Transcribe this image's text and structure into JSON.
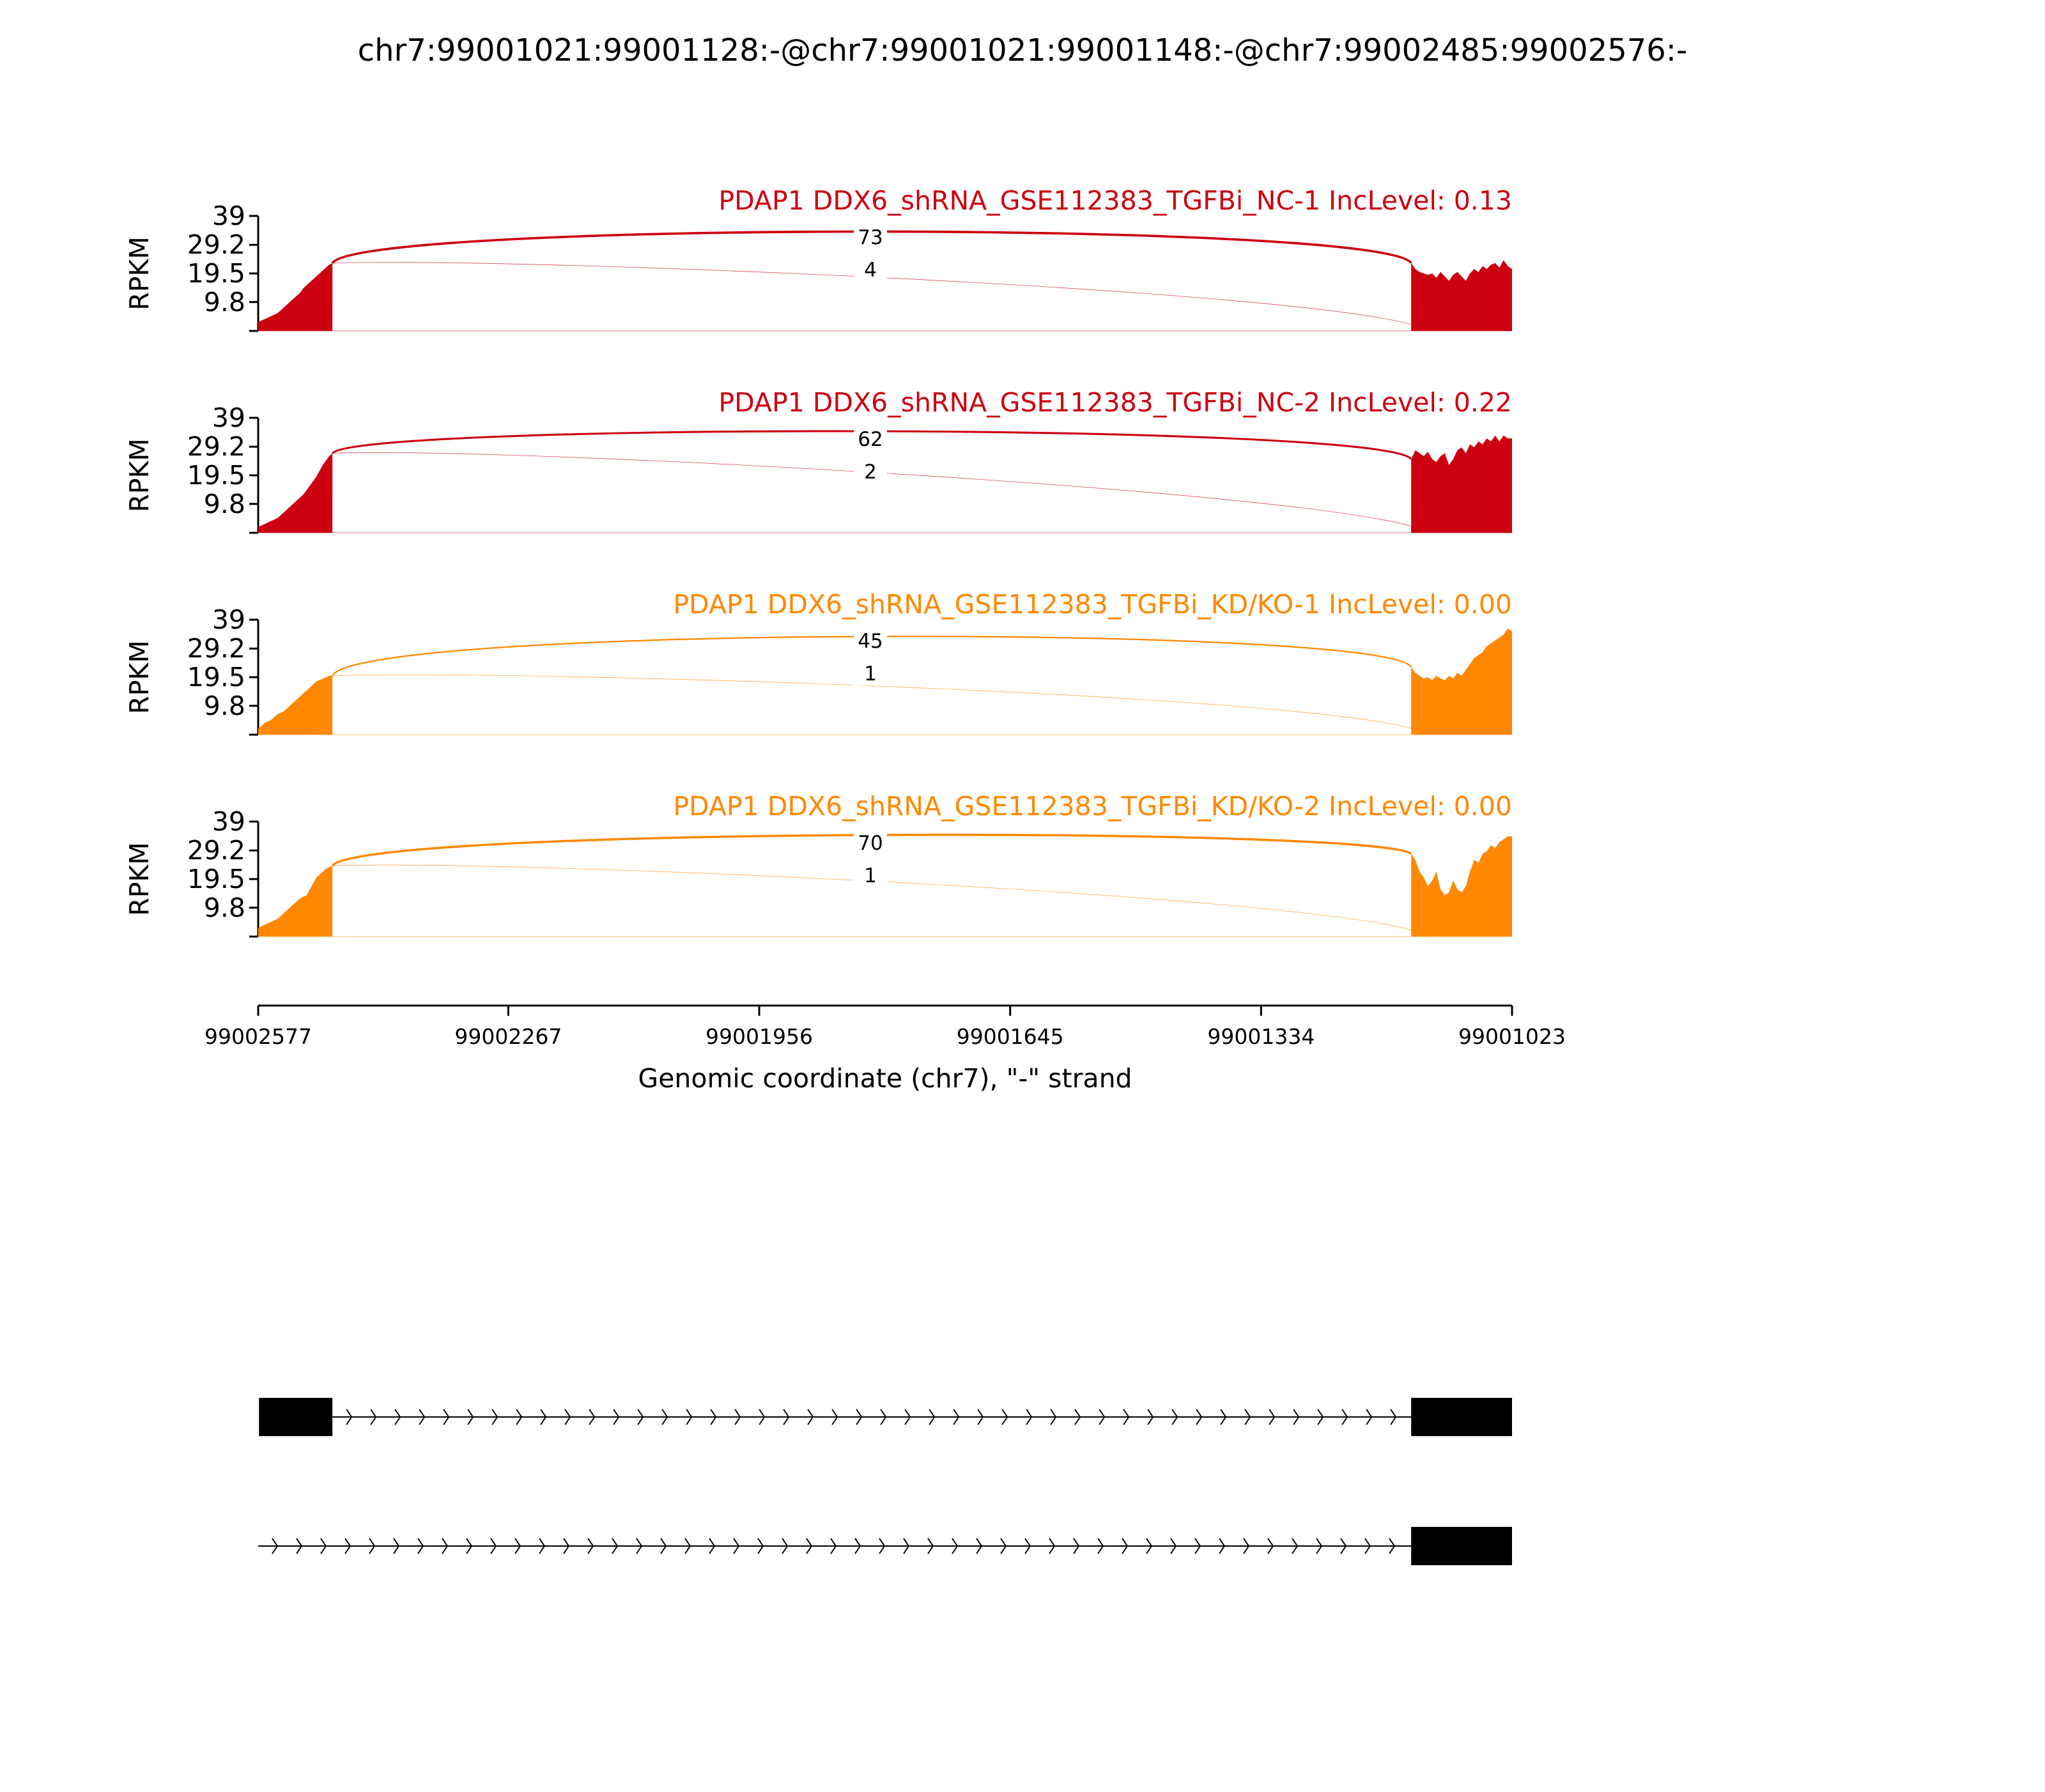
{
  "title": "chr7:99001021:99001128:-@chr7:99001021:99001148:-@chr7:99002485:99002576:-",
  "chart_data": {
    "type": "area",
    "description_free": true,
    "ylabel": "RPKM",
    "yticks": [
      "9.8",
      "19.5",
      "29.2",
      "39"
    ],
    "ytick_values": [
      9.8,
      19.5,
      29.2,
      39
    ],
    "ylim": [
      0,
      39
    ],
    "xlim": [
      99002577,
      99001023
    ],
    "x_reversed": true,
    "xticks": [
      "99002577",
      "99002267",
      "99001956",
      "99001645",
      "99001334",
      "99001023"
    ],
    "xtick_values": [
      99002577,
      99002267,
      99001956,
      99001645,
      99001334,
      99001023
    ],
    "xlabel": "Genomic coordinate (chr7), \"-\" strand",
    "exons": [
      {
        "start": 99002576,
        "end": 99002485
      },
      {
        "start": 99001148,
        "end": 99001023
      }
    ],
    "panels": [
      {
        "label": "PDAP1 DDX6_shRNA_GSE112383_TGFBi_NC-1 IncLevel: 0.13",
        "color": "#CC0011",
        "junctions": [
          {
            "from": 99002485,
            "to": 99001148,
            "count": "73",
            "weight": 73,
            "side": "upper"
          },
          {
            "from": 99002485,
            "to": 99001128,
            "count": "4",
            "weight": 4,
            "side": "lower"
          }
        ],
        "left_exon_profile": [
          3,
          3.5,
          4,
          4.5,
          5,
          5.5,
          6,
          7,
          8,
          9,
          10,
          11,
          12,
          13,
          14.5,
          15.5,
          16.5,
          17.5,
          18.5,
          19.5,
          20.5,
          21.5,
          22.5,
          23
        ],
        "right_exon_profile": [
          23,
          21,
          20,
          19.5,
          19,
          19.5,
          18,
          20,
          18.5,
          17,
          19,
          20,
          18.5,
          17,
          19.5,
          21,
          20,
          22,
          21,
          22.5,
          23,
          21.5,
          24,
          22,
          21
        ]
      },
      {
        "label": "PDAP1 DDX6_shRNA_GSE112383_TGFBi_NC-2 IncLevel: 0.22",
        "color": "#CC0011",
        "junctions": [
          {
            "from": 99002485,
            "to": 99001148,
            "count": "62",
            "weight": 62,
            "side": "upper"
          },
          {
            "from": 99002485,
            "to": 99001128,
            "count": "2",
            "weight": 2,
            "side": "lower"
          }
        ],
        "left_exon_profile": [
          2,
          2.5,
          3,
          3.5,
          4,
          4.5,
          5,
          6,
          7,
          8,
          9,
          10,
          11,
          12,
          13,
          14.5,
          16,
          17.5,
          19,
          21,
          23,
          24.5,
          26,
          27
        ],
        "right_exon_profile": [
          25,
          28,
          27,
          26,
          27.5,
          25,
          24,
          26,
          27,
          23,
          25,
          28,
          29,
          27,
          30,
          29,
          31,
          30,
          32,
          31,
          33,
          31,
          33,
          32,
          32
        ]
      },
      {
        "label": "PDAP1 DDX6_shRNA_GSE112383_TGFBi_KD/KO-1 IncLevel: 0.00",
        "color": "#FF8800",
        "junctions": [
          {
            "from": 99002485,
            "to": 99001148,
            "count": "45",
            "weight": 45,
            "side": "upper"
          },
          {
            "from": 99002485,
            "to": 99001128,
            "count": "1",
            "weight": 1,
            "side": "lower"
          }
        ],
        "left_exon_profile": [
          2,
          3,
          4,
          4.5,
          5,
          6,
          7,
          7.5,
          8,
          9,
          10,
          11,
          12,
          13,
          14,
          15,
          16,
          17,
          18,
          18.5,
          19,
          19.5,
          20,
          20
        ],
        "right_exon_profile": [
          23,
          21,
          20,
          19,
          19.5,
          18.5,
          20,
          19,
          18.5,
          20,
          19,
          21,
          20,
          22,
          24,
          26,
          27,
          28,
          30,
          31,
          32,
          33,
          34,
          36,
          35
        ]
      },
      {
        "label": "PDAP1 DDX6_shRNA_GSE112383_TGFBi_KD/KO-2 IncLevel: 0.00",
        "color": "#FF8800",
        "junctions": [
          {
            "from": 99002485,
            "to": 99001148,
            "count": "70",
            "weight": 70,
            "side": "upper"
          },
          {
            "from": 99002485,
            "to": 99001128,
            "count": "1",
            "weight": 1,
            "side": "lower"
          }
        ],
        "left_exon_profile": [
          3,
          3.5,
          4,
          4.5,
          5,
          5.5,
          6,
          7,
          8,
          9,
          10,
          11,
          12,
          13,
          13.5,
          14,
          16,
          18,
          20,
          21,
          22,
          23,
          23.5,
          24
        ],
        "right_exon_profile": [
          28,
          26,
          22,
          20,
          17,
          19,
          22,
          16,
          14,
          15,
          19,
          16,
          15,
          17,
          22,
          26,
          25,
          28,
          29,
          31,
          30,
          32,
          33,
          34,
          34
        ]
      }
    ],
    "isoforms": [
      {
        "exons": [
          [
            99002576,
            99002485
          ],
          [
            99001148,
            99001023
          ]
        ],
        "intron": [
          99002485,
          99001148
        ]
      },
      {
        "exons": [
          [
            99001148,
            99001023
          ]
        ],
        "intron": [
          99002577,
          99001148
        ]
      }
    ]
  }
}
